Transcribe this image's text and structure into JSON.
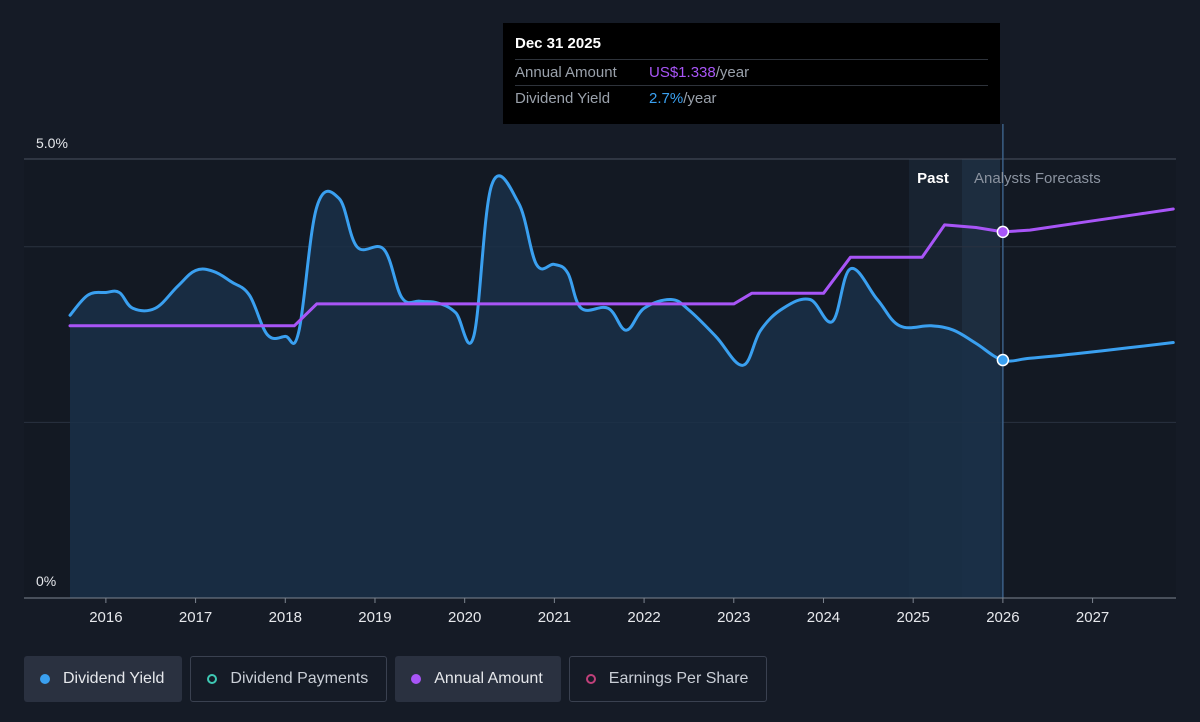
{
  "tooltip": {
    "date": "Dec 31 2025",
    "annual_label": "Annual Amount",
    "annual_value": "US$1.338",
    "annual_unit": "/year",
    "yield_label": "Dividend Yield",
    "yield_value": "2.7%",
    "yield_unit": "/year"
  },
  "colors": {
    "background": "#151b26",
    "yield": "#3aa0f0",
    "annual": "#a855f7",
    "payments": "#3ec9b4",
    "eps": "#c0407a"
  },
  "legend": [
    {
      "label": "Dividend Yield",
      "color": "#3aa0f0",
      "active": true
    },
    {
      "label": "Dividend Payments",
      "color": "#3ec9b4",
      "active": false
    },
    {
      "label": "Annual Amount",
      "color": "#a855f7",
      "active": true
    },
    {
      "label": "Earnings Per Share",
      "color": "#c0407a",
      "active": false
    }
  ],
  "chart_data": {
    "type": "line",
    "y_axis": {
      "min": 0,
      "max": 5,
      "unit": "%",
      "labels": [
        "5.0%",
        "0%"
      ],
      "gridlines": [
        0,
        2,
        4,
        5
      ]
    },
    "x_axis": {
      "min": 2015.6,
      "max": 2027.9,
      "ticks": [
        "2016",
        "2017",
        "2018",
        "2019",
        "2020",
        "2021",
        "2022",
        "2023",
        "2024",
        "2025",
        "2026",
        "2027"
      ]
    },
    "regions": {
      "past_label": "Past",
      "forecast_label": "Analysts Forecasts",
      "divider_x": 2026.0
    },
    "series": [
      {
        "name": "Dividend Yield",
        "color": "#3aa0f0",
        "points": [
          [
            2015.6,
            3.22
          ],
          [
            2015.8,
            3.45
          ],
          [
            2016.0,
            3.48
          ],
          [
            2016.15,
            3.48
          ],
          [
            2016.3,
            3.3
          ],
          [
            2016.55,
            3.3
          ],
          [
            2016.8,
            3.55
          ],
          [
            2017.0,
            3.73
          ],
          [
            2017.2,
            3.72
          ],
          [
            2017.4,
            3.6
          ],
          [
            2017.6,
            3.45
          ],
          [
            2017.8,
            3.0
          ],
          [
            2018.0,
            2.98
          ],
          [
            2018.15,
            3.03
          ],
          [
            2018.35,
            4.45
          ],
          [
            2018.6,
            4.55
          ],
          [
            2018.8,
            4.0
          ],
          [
            2019.1,
            3.97
          ],
          [
            2019.3,
            3.42
          ],
          [
            2019.5,
            3.38
          ],
          [
            2019.7,
            3.36
          ],
          [
            2019.9,
            3.25
          ],
          [
            2020.1,
            2.98
          ],
          [
            2020.3,
            4.7
          ],
          [
            2020.6,
            4.5
          ],
          [
            2020.8,
            3.8
          ],
          [
            2021.0,
            3.8
          ],
          [
            2021.15,
            3.7
          ],
          [
            2021.3,
            3.3
          ],
          [
            2021.6,
            3.3
          ],
          [
            2021.8,
            3.05
          ],
          [
            2022.0,
            3.3
          ],
          [
            2022.3,
            3.4
          ],
          [
            2022.5,
            3.28
          ],
          [
            2022.8,
            2.98
          ],
          [
            2023.1,
            2.65
          ],
          [
            2023.3,
            3.05
          ],
          [
            2023.55,
            3.3
          ],
          [
            2023.85,
            3.4
          ],
          [
            2024.1,
            3.15
          ],
          [
            2024.3,
            3.75
          ],
          [
            2024.6,
            3.4
          ],
          [
            2024.85,
            3.1
          ],
          [
            2025.2,
            3.1
          ],
          [
            2025.45,
            3.05
          ],
          [
            2025.7,
            2.9
          ],
          [
            2026.0,
            2.71
          ],
          [
            2026.3,
            2.73
          ],
          [
            2026.8,
            2.78
          ],
          [
            2027.4,
            2.85
          ],
          [
            2027.9,
            2.91
          ]
        ]
      },
      {
        "name": "Annual Amount",
        "color": "#a855f7",
        "points": [
          [
            2015.6,
            3.1
          ],
          [
            2018.1,
            3.1
          ],
          [
            2018.35,
            3.35
          ],
          [
            2022.7,
            3.35
          ],
          [
            2023.0,
            3.35
          ],
          [
            2023.2,
            3.47
          ],
          [
            2024.0,
            3.47
          ],
          [
            2024.3,
            3.88
          ],
          [
            2025.1,
            3.88
          ],
          [
            2025.35,
            4.25
          ],
          [
            2025.7,
            4.22
          ],
          [
            2026.0,
            4.17
          ],
          [
            2026.3,
            4.19
          ],
          [
            2026.9,
            4.28
          ],
          [
            2027.5,
            4.37
          ],
          [
            2027.9,
            4.43
          ]
        ]
      }
    ],
    "highlight": {
      "x": 2026.0,
      "yield": 2.71,
      "annual": 4.17
    }
  }
}
